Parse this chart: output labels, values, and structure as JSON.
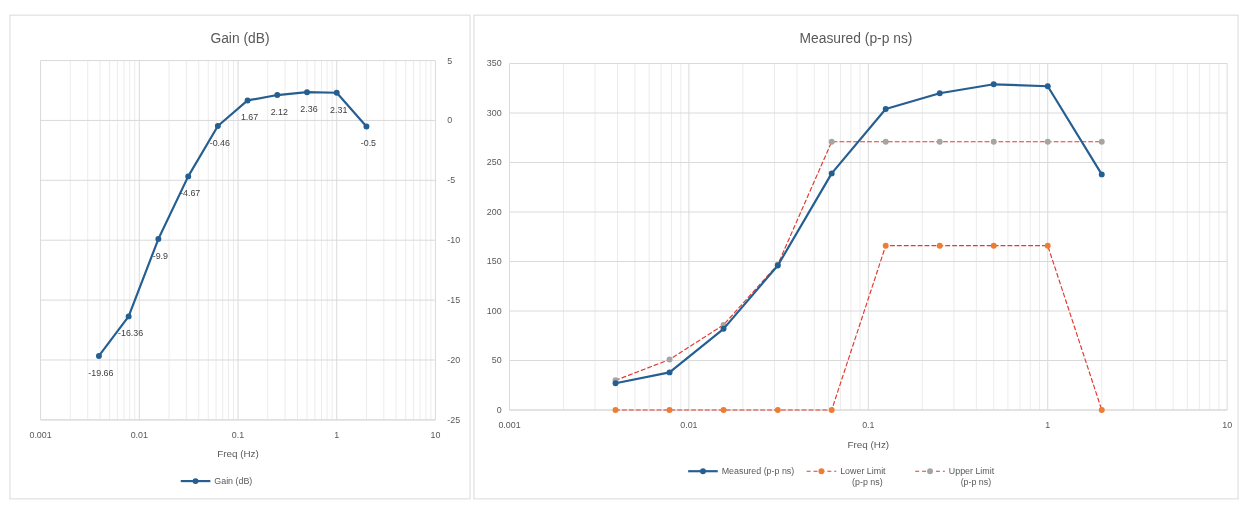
{
  "chart_data": [
    {
      "type": "line",
      "title": "Gain (dB)",
      "xlabel": "Freq (Hz)",
      "log": "x",
      "grid": true,
      "legend": "bottom",
      "marker": "circle",
      "data_labels": true,
      "x": [
        0.0039,
        0.0078,
        0.0156,
        0.0313,
        0.0625,
        0.125,
        0.25,
        0.5,
        1,
        2
      ],
      "xlim": [
        0.001,
        10
      ],
      "xticks": [
        0.001,
        0.01,
        0.1,
        1,
        10
      ],
      "ylim": [
        -25,
        5
      ],
      "yticks": [
        -25,
        -20,
        -15,
        -10,
        -5,
        0,
        5
      ],
      "series": [
        {
          "name": "Gain (dB)",
          "color": "#255e91",
          "line_style": "solid",
          "values": [
            -19.66,
            -16.36,
            -9.9,
            -4.67,
            -0.46,
            1.67,
            2.12,
            2.36,
            2.31,
            -0.5
          ]
        }
      ]
    },
    {
      "type": "line",
      "title": "Measured (p-p ns)",
      "xlabel": "Freq (Hz)",
      "log": "x",
      "grid": true,
      "legend": "bottom",
      "marker": "circle",
      "x": [
        0.0039,
        0.0078,
        0.0156,
        0.0313,
        0.0625,
        0.125,
        0.25,
        0.5,
        1,
        2
      ],
      "xlim": [
        0.001,
        10
      ],
      "xticks": [
        0.001,
        0.01,
        0.1,
        1,
        10
      ],
      "ylim": [
        0,
        350
      ],
      "yticks": [
        0,
        50,
        100,
        150,
        200,
        250,
        300,
        350
      ],
      "series": [
        {
          "name": "Measured (p-p ns)",
          "color": "#255e91",
          "line_style": "solid",
          "values": [
            27,
            38,
            82,
            146,
            239,
            304,
            320,
            329,
            327,
            238
          ]
        },
        {
          "name": "Lower Limit (p-p ns)",
          "color": "#e03c31",
          "colors": [
            "#ed7d31",
            "#ed7d31",
            "#ed7d31",
            "#ed7d31",
            "#ed7d31",
            "#ed7d31",
            "#ed7d31",
            "#ed7d31",
            "#ed7d31",
            "#ed7d31"
          ],
          "line_style": "dashed",
          "values": [
            0,
            0,
            0,
            0,
            0,
            166,
            166,
            166,
            166,
            0
          ]
        },
        {
          "name": "Upper Limit (p-p ns)",
          "color": "#e03c31",
          "colors": [
            "#a5a5a5",
            "#a5a5a5",
            "#a5a5a5",
            "#a5a5a5",
            "#a5a5a5",
            "#a5a5a5",
            "#a5a5a5",
            "#a5a5a5",
            "#a5a5a5",
            "#a5a5a5"
          ],
          "line_style": "dashed",
          "values": [
            30,
            51,
            86,
            147,
            271,
            271,
            271,
            271,
            271,
            271
          ]
        }
      ]
    }
  ]
}
